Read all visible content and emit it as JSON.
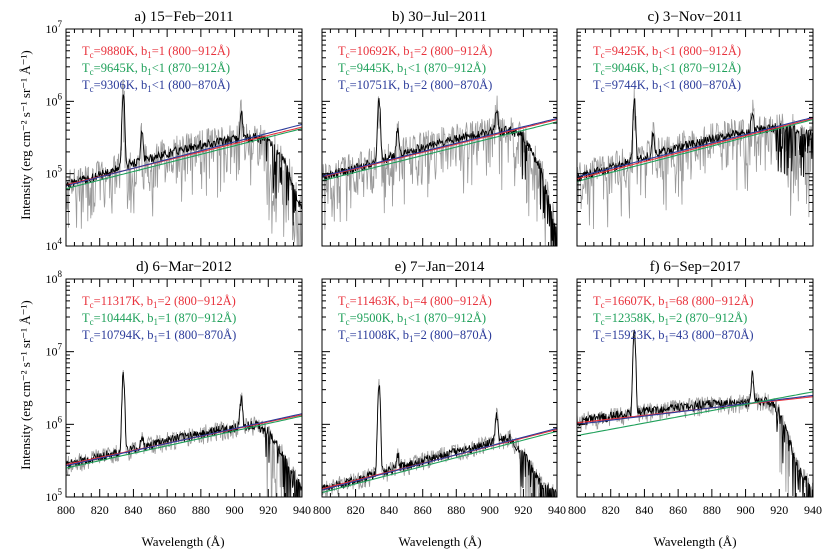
{
  "figure": {
    "xlabel": "Wavelength (Å)",
    "ylabel": "Intensity (erg cm⁻² s⁻¹ sr⁻¹ Å⁻¹)",
    "fit_colors": [
      "#e8323c",
      "#1fa05a",
      "#2b3b9a"
    ]
  },
  "chart_data": [
    {
      "type": "line",
      "title": "a) 15−Feb−2011",
      "xlim": [
        800,
        940
      ],
      "ylim": [
        10000,
        10000000
      ],
      "yscale": "log",
      "x_ticks": [
        "800",
        "820",
        "840",
        "860",
        "880",
        "900",
        "920",
        "940"
      ],
      "y_ticks": [
        {
          "base": "10",
          "exp": "4"
        },
        {
          "base": "10",
          "exp": "5"
        },
        {
          "base": "10",
          "exp": "6"
        },
        {
          "base": "10",
          "exp": "7"
        }
      ],
      "fits": [
        {
          "T": "9880K",
          "b1": "=1",
          "range": "(800−912Å)",
          "y800": 70000,
          "y940": 440000
        },
        {
          "T": "9645K",
          "b1": "<1",
          "range": "(870−912Å)",
          "y800": 62000,
          "y940": 420000
        },
        {
          "T": "9306K",
          "b1": "<1",
          "range": "(800−870Å)",
          "y800": 68000,
          "y940": 480000
        }
      ],
      "spectrum_anchors": [
        [
          800,
          70000
        ],
        [
          820,
          95000
        ],
        [
          840,
          140000
        ],
        [
          860,
          190000
        ],
        [
          880,
          250000
        ],
        [
          900,
          300000
        ],
        [
          912,
          320000
        ],
        [
          920,
          280000
        ],
        [
          930,
          150000
        ],
        [
          940,
          30000
        ]
      ],
      "lines": [
        {
          "x": 834,
          "peak": 1350000
        },
        {
          "x": 845,
          "peak": 400000
        },
        {
          "x": 904,
          "peak": 700000
        }
      ]
    },
    {
      "type": "line",
      "title": "b) 30−Jul−2011",
      "xlim": [
        800,
        940
      ],
      "ylim": [
        10000,
        10000000
      ],
      "yscale": "log",
      "x_ticks": [
        "800",
        "820",
        "840",
        "860",
        "880",
        "900",
        "920",
        "940"
      ],
      "y_ticks": [],
      "fits": [
        {
          "T": "10692K",
          "b1": "=2",
          "range": "(800−912Å)",
          "y800": 90000,
          "y940": 560000
        },
        {
          "T": "9445K",
          "b1": "<1",
          "range": "(870−912Å)",
          "y800": 80000,
          "y940": 520000
        },
        {
          "T": "10751K",
          "b1": "=2",
          "range": "(800−870Å)",
          "y800": 92000,
          "y940": 580000
        }
      ],
      "spectrum_anchors": [
        [
          800,
          90000
        ],
        [
          820,
          120000
        ],
        [
          840,
          170000
        ],
        [
          860,
          230000
        ],
        [
          880,
          300000
        ],
        [
          900,
          380000
        ],
        [
          912,
          400000
        ],
        [
          920,
          330000
        ],
        [
          930,
          120000
        ],
        [
          940,
          15000
        ]
      ],
      "lines": [
        {
          "x": 834,
          "peak": 1100000
        },
        {
          "x": 845,
          "peak": 400000
        },
        {
          "x": 904,
          "peak": 800000
        }
      ]
    },
    {
      "type": "line",
      "title": "c) 3−Nov−2011",
      "xlim": [
        800,
        940
      ],
      "ylim": [
        10000,
        10000000
      ],
      "yscale": "log",
      "x_ticks": [
        "800",
        "820",
        "840",
        "860",
        "880",
        "900",
        "920",
        "940"
      ],
      "y_ticks": [],
      "fits": [
        {
          "T": "9425K",
          "b1": "<1",
          "range": "(800−912Å)",
          "y800": 85000,
          "y940": 580000
        },
        {
          "T": "9046K",
          "b1": "<1",
          "range": "(870−912Å)",
          "y800": 78000,
          "y940": 560000
        },
        {
          "T": "9744K",
          "b1": "<1",
          "range": "(800−870Å)",
          "y800": 90000,
          "y940": 600000
        }
      ],
      "spectrum_anchors": [
        [
          800,
          90000
        ],
        [
          820,
          120000
        ],
        [
          840,
          170000
        ],
        [
          860,
          230000
        ],
        [
          880,
          300000
        ],
        [
          900,
          380000
        ],
        [
          912,
          420000
        ],
        [
          920,
          450000
        ],
        [
          930,
          400000
        ],
        [
          940,
          350000
        ]
      ],
      "lines": [
        {
          "x": 834,
          "peak": 1050000
        },
        {
          "x": 845,
          "peak": 350000
        },
        {
          "x": 904,
          "peak": 700000
        }
      ]
    },
    {
      "type": "line",
      "title": "d) 6−Mar−2012",
      "xlim": [
        800,
        940
      ],
      "ylim": [
        100000,
        100000000
      ],
      "yscale": "log",
      "x_ticks": [
        "800",
        "820",
        "840",
        "860",
        "880",
        "900",
        "920",
        "940"
      ],
      "y_ticks": [
        {
          "base": "10",
          "exp": "5"
        },
        {
          "base": "10",
          "exp": "6"
        },
        {
          "base": "10",
          "exp": "7"
        },
        {
          "base": "10",
          "exp": "8"
        }
      ],
      "fits": [
        {
          "T": "11317K",
          "b1": "=2",
          "range": "(800−912Å)",
          "y800": 280000,
          "y940": 1350000
        },
        {
          "T": "10444K",
          "b1": "=1",
          "range": "(870−912Å)",
          "y800": 250000,
          "y940": 1300000
        },
        {
          "T": "10794K",
          "b1": "=1",
          "range": "(800−870Å)",
          "y800": 270000,
          "y940": 1400000
        }
      ],
      "spectrum_anchors": [
        [
          800,
          280000
        ],
        [
          820,
          360000
        ],
        [
          840,
          450000
        ],
        [
          860,
          600000
        ],
        [
          880,
          750000
        ],
        [
          900,
          900000
        ],
        [
          912,
          1000000
        ],
        [
          920,
          800000
        ],
        [
          930,
          350000
        ],
        [
          940,
          130000
        ]
      ],
      "lines": [
        {
          "x": 834,
          "peak": 4800000
        },
        {
          "x": 845,
          "peak": 700000
        },
        {
          "x": 904,
          "peak": 2400000
        }
      ]
    },
    {
      "type": "line",
      "title": "e) 7−Jan−2014",
      "xlim": [
        800,
        940
      ],
      "ylim": [
        100000,
        100000000
      ],
      "yscale": "log",
      "x_ticks": [
        "800",
        "820",
        "840",
        "860",
        "880",
        "900",
        "920",
        "940"
      ],
      "y_ticks": [],
      "fits": [
        {
          "T": "11463K",
          "b1": "=4",
          "range": "(800−912Å)",
          "y800": 130000,
          "y940": 850000
        },
        {
          "T": "9500K",
          "b1": "<1",
          "range": "(870−912Å)",
          "y800": 115000,
          "y940": 800000
        },
        {
          "T": "11008K",
          "b1": "=2",
          "range": "(800−870Å)",
          "y800": 125000,
          "y940": 880000
        }
      ],
      "spectrum_anchors": [
        [
          800,
          130000
        ],
        [
          820,
          170000
        ],
        [
          840,
          230000
        ],
        [
          860,
          320000
        ],
        [
          880,
          420000
        ],
        [
          900,
          550000
        ],
        [
          912,
          650000
        ],
        [
          920,
          400000
        ],
        [
          930,
          160000
        ],
        [
          940,
          110000
        ]
      ],
      "lines": [
        {
          "x": 834,
          "peak": 3400000
        },
        {
          "x": 845,
          "peak": 400000
        },
        {
          "x": 904,
          "peak": 1400000
        }
      ]
    },
    {
      "type": "line",
      "title": "f) 6−Sep−2017",
      "xlim": [
        800,
        940
      ],
      "ylim": [
        100000,
        100000000
      ],
      "yscale": "log",
      "x_ticks": [
        "800",
        "820",
        "840",
        "860",
        "880",
        "900",
        "920",
        "940"
      ],
      "y_ticks": [],
      "fits": [
        {
          "T": "16607K",
          "b1": "=68",
          "range": "(800−912Å)",
          "y800": 1050000,
          "y940": 2400000
        },
        {
          "T": "12358K",
          "b1": "=2",
          "range": "(870−912Å)",
          "y800": 700000,
          "y940": 2800000
        },
        {
          "T": "15923K",
          "b1": "=43",
          "range": "(800−870Å)",
          "y800": 1000000,
          "y940": 2500000
        }
      ],
      "spectrum_anchors": [
        [
          800,
          1100000
        ],
        [
          820,
          1300000
        ],
        [
          840,
          1500000
        ],
        [
          860,
          1700000
        ],
        [
          880,
          1900000
        ],
        [
          900,
          2000000
        ],
        [
          912,
          2100000
        ],
        [
          920,
          1600000
        ],
        [
          930,
          300000
        ],
        [
          940,
          120000
        ]
      ],
      "lines": [
        {
          "x": 834,
          "peak": 19000000
        },
        {
          "x": 904,
          "peak": 5200000
        }
      ]
    }
  ]
}
